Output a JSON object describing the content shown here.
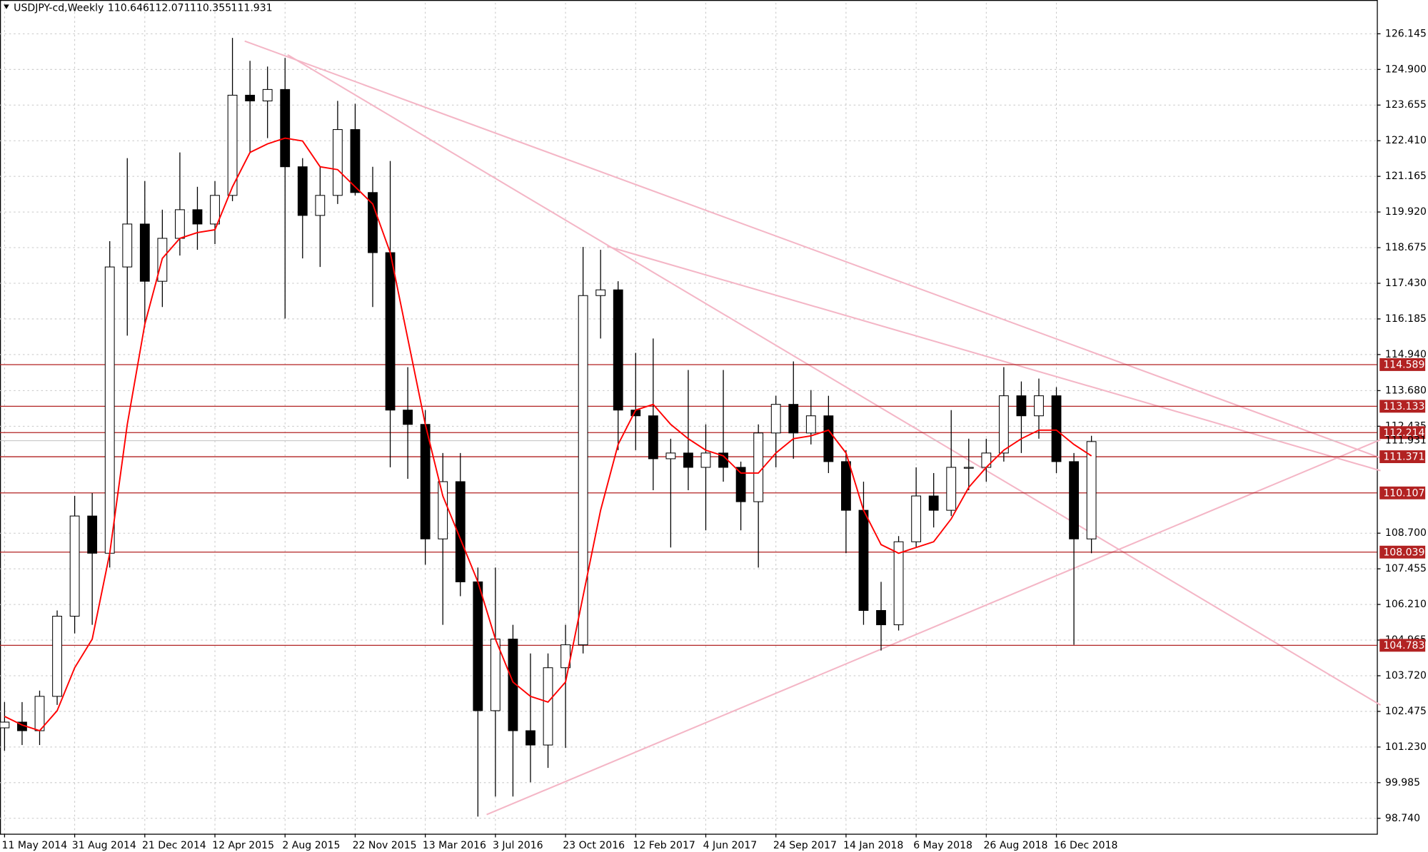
{
  "chart_data": {
    "type": "candlestick",
    "header_symbol": "USDJPY-cd,Weekly",
    "header_ohlc": [
      110.646,
      112.071,
      110.355,
      111.931
    ],
    "categories": [
      "11 May 2014",
      null,
      null,
      null,
      "31 Aug 2014",
      null,
      null,
      null,
      "21 Dec 2014",
      null,
      null,
      null,
      "12 Apr 2015",
      null,
      null,
      null,
      "2 Aug 2015",
      null,
      null,
      null,
      "22 Nov 2015",
      null,
      null,
      null,
      "13 Mar 2016",
      null,
      null,
      null,
      "3 Jul 2016",
      null,
      null,
      null,
      "23 Oct 2016",
      null,
      null,
      null,
      "12 Feb 2017",
      null,
      null,
      null,
      "4 Jun 2017",
      null,
      null,
      null,
      "24 Sep 2017",
      null,
      null,
      null,
      "14 Jan 2018",
      null,
      null,
      null,
      "6 May 2018",
      null,
      null,
      null,
      "26 Aug 2018",
      null,
      null,
      null,
      "16 Dec 2018",
      null,
      null
    ],
    "open": [
      101.9,
      102.1,
      101.8,
      103.0,
      105.8,
      109.3,
      108.0,
      118.0,
      119.5,
      117.5,
      119.0,
      120.0,
      119.5,
      120.5,
      124.0,
      123.8,
      124.2,
      121.5,
      119.8,
      120.5,
      122.8,
      120.6,
      118.5,
      113.0,
      112.5,
      108.5,
      110.5,
      107.0,
      102.5,
      105.0,
      101.8,
      101.3,
      104.0,
      104.8,
      117.0,
      117.2,
      113.0,
      112.8,
      111.3,
      111.5,
      111.0,
      111.5,
      111.0,
      109.8,
      112.2,
      113.2,
      112.2,
      112.8,
      111.2,
      109.5,
      106.0,
      105.5,
      108.4,
      110.0,
      109.5,
      111.0,
      111.0,
      111.5,
      113.5,
      112.8,
      113.5,
      111.2,
      108.5
    ],
    "high": [
      102.8,
      102.8,
      103.2,
      106.0,
      110.0,
      110.1,
      118.9,
      121.8,
      121.0,
      120.0,
      122.0,
      120.8,
      121.0,
      126.0,
      125.2,
      125.0,
      125.3,
      121.8,
      121.5,
      123.8,
      123.7,
      121.5,
      121.7,
      114.5,
      113.0,
      111.5,
      111.5,
      107.5,
      107.5,
      105.5,
      104.5,
      104.5,
      105.5,
      118.7,
      118.6,
      117.5,
      115.0,
      115.5,
      112.0,
      114.4,
      112.5,
      114.4,
      111.2,
      112.5,
      113.5,
      114.7,
      113.7,
      113.5,
      111.6,
      110.5,
      107.0,
      108.6,
      111.0,
      110.8,
      113.0,
      112.0,
      112.0,
      114.5,
      114.0,
      114.1,
      113.8,
      111.5,
      112.1
    ],
    "low": [
      101.1,
      101.3,
      101.3,
      102.7,
      105.2,
      105.5,
      107.5,
      115.6,
      115.9,
      116.6,
      118.4,
      118.6,
      118.8,
      120.3,
      122.0,
      122.5,
      116.2,
      118.3,
      118.0,
      120.2,
      120.5,
      116.6,
      111.0,
      110.6,
      107.6,
      105.5,
      106.5,
      98.8,
      99.5,
      99.5,
      100.0,
      100.5,
      101.2,
      104.5,
      115.5,
      111.6,
      111.6,
      110.2,
      108.2,
      110.2,
      108.8,
      110.5,
      108.8,
      107.5,
      111.0,
      111.3,
      111.8,
      110.8,
      108.0,
      105.5,
      104.6,
      105.3,
      108.2,
      108.9,
      109.3,
      110.2,
      110.5,
      111.2,
      111.5,
      112.0,
      110.8,
      104.8,
      108.0
    ],
    "close": [
      102.1,
      101.8,
      103.0,
      105.8,
      109.3,
      108.0,
      118.0,
      119.5,
      117.5,
      119.0,
      120.0,
      119.5,
      120.5,
      124.0,
      123.8,
      124.2,
      121.5,
      119.8,
      120.5,
      122.8,
      120.6,
      118.5,
      113.0,
      112.5,
      108.5,
      110.5,
      107.0,
      102.5,
      105.0,
      101.8,
      101.3,
      104.0,
      104.8,
      117.0,
      117.2,
      113.0,
      112.8,
      111.3,
      111.5,
      111.0,
      111.5,
      111.0,
      109.8,
      112.2,
      113.2,
      112.2,
      112.8,
      111.2,
      109.5,
      106.0,
      105.5,
      108.4,
      110.0,
      109.5,
      111.0,
      111.0,
      111.5,
      113.5,
      112.8,
      113.5,
      111.2,
      108.5,
      111.9
    ],
    "ma_values": [
      102.3,
      102.0,
      101.8,
      102.5,
      104.0,
      105.0,
      108.0,
      112.5,
      116.0,
      118.3,
      119.0,
      119.2,
      119.3,
      120.8,
      122.0,
      122.3,
      122.5,
      122.4,
      121.5,
      121.4,
      120.8,
      120.2,
      118.5,
      115.5,
      112.5,
      110.0,
      108.5,
      107.0,
      105.0,
      103.5,
      103.0,
      102.8,
      103.5,
      106.5,
      109.5,
      111.8,
      113.0,
      113.2,
      112.5,
      112.0,
      111.6,
      111.4,
      110.8,
      110.8,
      111.5,
      112.0,
      112.1,
      112.3,
      111.5,
      109.5,
      108.3,
      108.0,
      108.2,
      108.4,
      109.2,
      110.3,
      111.0,
      111.6,
      112.0,
      112.3,
      112.3,
      111.8,
      111.4
    ],
    "ma_color": "#ff0000",
    "levels": [
      114.589,
      113.133,
      112.214,
      111.371,
      110.107,
      108.039,
      104.783
    ],
    "level_color": "#b22222",
    "last_price": 111.931,
    "ylim": [
      98.2,
      127.23
    ],
    "yticks": [
      126.145,
      {
        "value": 124.9,
        "label": "124.900"
      },
      123.655,
      {
        "value": 122.41,
        "label": "122.410"
      },
      121.165,
      {
        "value": 119.92,
        "label": "119.920"
      },
      118.675,
      {
        "value": 117.43,
        "label": "117.430"
      },
      116.185,
      {
        "value": 114.94,
        "label": "114.940"
      },
      {
        "value": 113.68,
        "label": "113.680"
      },
      112.435,
      {
        "value": 108.7,
        "label": "108.700"
      },
      107.455,
      {
        "value": 106.21,
        "label": "106.210"
      },
      104.965,
      {
        "value": 103.72,
        "label": "103.720"
      },
      102.475,
      {
        "value": 101.23,
        "label": "101.230"
      },
      99.985,
      {
        "value": 98.74,
        "label": "98.740"
      }
    ],
    "grid": true
  }
}
